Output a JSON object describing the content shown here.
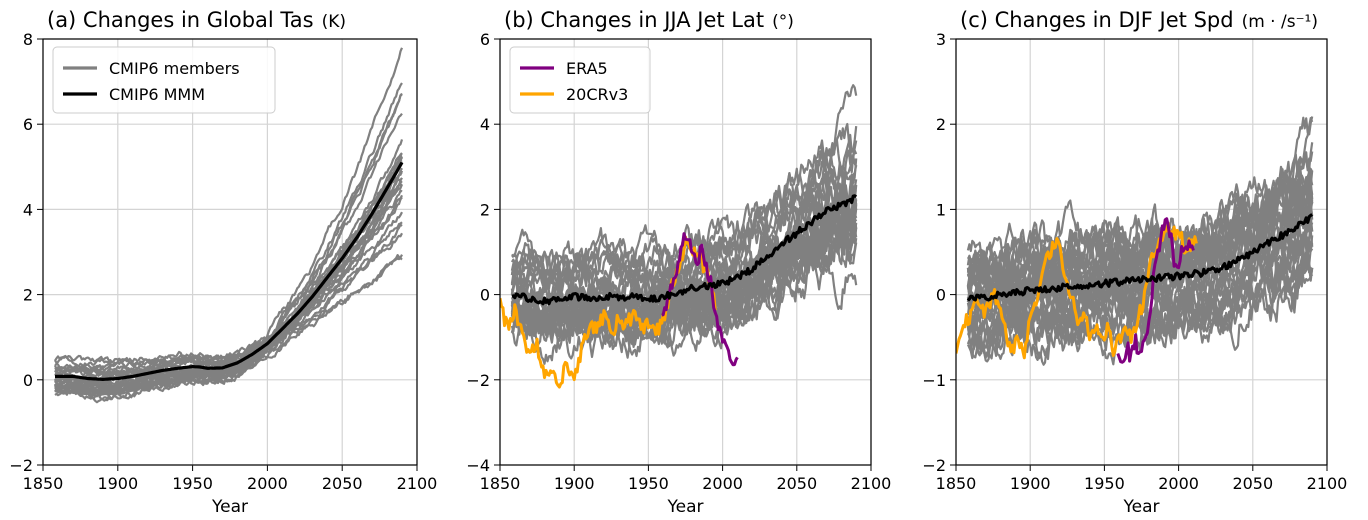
{
  "chart_data": [
    {
      "type": "line",
      "title": "(a) Changes in Global Tas",
      "units": "(K)",
      "xlabel": "Year",
      "ylabel": "",
      "xlim": [
        1850,
        2100
      ],
      "ylim": [
        -2,
        8
      ],
      "xticks": [
        "1850",
        "1900",
        "1950",
        "2000",
        "2050",
        "2100"
      ],
      "yticks": [
        "−2",
        "0",
        "2",
        "4",
        "6",
        "8"
      ],
      "grid": true,
      "legend": {
        "placement": "top-left",
        "entries": [
          "CMIP6 members",
          "CMIP6 MMM"
        ]
      },
      "series": [
        {
          "name": "CMIP6 members",
          "color": "#808080",
          "role": "ensemble",
          "count": 30,
          "spread": [
            0.4,
            0.4,
            0.3,
            0.25,
            0.15,
            0.4,
            0.9,
            1.6
          ]
        },
        {
          "name": "CMIP6 MMM",
          "color": "#000000",
          "role": "mean",
          "x": [
            1858,
            1870,
            1880,
            1890,
            1900,
            1910,
            1920,
            1930,
            1940,
            1950,
            1955,
            1960,
            1970,
            1980,
            1990,
            2000,
            2010,
            2020,
            2030,
            2040,
            2050,
            2060,
            2070,
            2080,
            2090
          ],
          "y": [
            0.08,
            0.08,
            0.03,
            0.01,
            0.03,
            0.08,
            0.15,
            0.22,
            0.27,
            0.31,
            0.3,
            0.27,
            0.28,
            0.4,
            0.6,
            0.85,
            1.2,
            1.55,
            1.95,
            2.4,
            2.85,
            3.35,
            3.9,
            4.5,
            5.1
          ]
        }
      ]
    },
    {
      "type": "line",
      "title": "(b) Changes in JJA Jet Lat",
      "units": "(°)",
      "xlabel": "Year",
      "ylabel": "",
      "xlim": [
        1850,
        2100
      ],
      "ylim": [
        -4,
        6
      ],
      "xticks": [
        "1850",
        "1900",
        "1950",
        "2000",
        "2050",
        "2100"
      ],
      "yticks": [
        "−4",
        "−2",
        "0",
        "2",
        "4",
        "6"
      ],
      "grid": true,
      "legend": {
        "placement": "top-left",
        "entries": [
          "ERA5",
          "20CRv3"
        ]
      },
      "series": [
        {
          "name": "CMIP6 members",
          "color": "#808080",
          "role": "ensemble",
          "count": 32,
          "spread": [
            1.2,
            1.3,
            1.3,
            1.3,
            1.3,
            1.4,
            1.5,
            1.9
          ]
        },
        {
          "name": "CMIP6 MMM",
          "color": "#000000",
          "role": "mean",
          "x": [
            1858,
            1870,
            1880,
            1890,
            1900,
            1910,
            1920,
            1930,
            1940,
            1950,
            1960,
            1970,
            1980,
            1990,
            2000,
            2010,
            2020,
            2030,
            2040,
            2050,
            2060,
            2070,
            2080,
            2090
          ],
          "y": [
            0.0,
            -0.1,
            -0.15,
            -0.1,
            -0.05,
            -0.1,
            -0.05,
            -0.05,
            -0.05,
            -0.1,
            -0.05,
            0.05,
            0.15,
            0.2,
            0.25,
            0.4,
            0.6,
            0.9,
            1.2,
            1.45,
            1.7,
            1.95,
            2.1,
            2.3
          ]
        },
        {
          "name": "20CRv3",
          "color": "#ffa500",
          "role": "reanalysis",
          "x": [
            1850,
            1853,
            1856,
            1860,
            1865,
            1870,
            1875,
            1880,
            1885,
            1890,
            1895,
            1900,
            1905,
            1910,
            1915,
            1920,
            1925,
            1930,
            1935,
            1940,
            1945,
            1950,
            1955,
            1960,
            1965,
            1970,
            1975,
            1980,
            1985,
            1990,
            1995
          ],
          "y": [
            -0.1,
            -0.6,
            -0.8,
            -0.4,
            -0.9,
            -1.4,
            -1.2,
            -1.8,
            -1.7,
            -2.1,
            -1.6,
            -1.9,
            -1.3,
            -0.7,
            -0.8,
            -0.5,
            -0.9,
            -0.6,
            -0.7,
            -0.5,
            -0.8,
            -0.7,
            -0.9,
            -0.6,
            0.1,
            0.6,
            1.2,
            1.0,
            0.9,
            0.4,
            -0.2
          ]
        },
        {
          "name": "ERA5",
          "color": "#800080",
          "role": "reanalysis",
          "x": [
            1959,
            1962,
            1965,
            1968,
            1971,
            1974,
            1977,
            1980,
            1983,
            1986,
            1989,
            1992,
            1995,
            1998,
            2001,
            2004,
            2007,
            2010
          ],
          "y": [
            -0.5,
            -0.2,
            0.2,
            0.5,
            0.9,
            1.4,
            1.3,
            1.0,
            0.8,
            1.1,
            0.6,
            0.3,
            -0.5,
            -0.9,
            -1.2,
            -1.3,
            -1.75,
            -1.6
          ]
        }
      ]
    },
    {
      "type": "line",
      "title": "(c) Changes in DJF Jet Spd",
      "units": "(m · /s⁻¹)",
      "xlabel": "Year",
      "ylabel": "",
      "xlim": [
        1850,
        2100
      ],
      "ylim": [
        -2,
        3
      ],
      "xticks": [
        "1850",
        "1900",
        "1950",
        "2000",
        "2050",
        "2100"
      ],
      "yticks": [
        "−2",
        "−1",
        "0",
        "1",
        "2",
        "3"
      ],
      "grid": true,
      "series": [
        {
          "name": "CMIP6 members",
          "color": "#808080",
          "role": "ensemble",
          "count": 32,
          "spread": [
            0.7,
            0.75,
            0.75,
            0.75,
            0.75,
            0.75,
            0.8,
            0.95
          ]
        },
        {
          "name": "CMIP6 MMM",
          "color": "#000000",
          "role": "mean",
          "x": [
            1858,
            1870,
            1880,
            1890,
            1900,
            1910,
            1920,
            1930,
            1940,
            1950,
            1960,
            1970,
            1980,
            1990,
            2000,
            2010,
            2020,
            2030,
            2040,
            2050,
            2060,
            2070,
            2080,
            2090
          ],
          "y": [
            -0.05,
            -0.03,
            0.0,
            0.02,
            0.05,
            0.07,
            0.08,
            0.1,
            0.12,
            0.13,
            0.15,
            0.17,
            0.18,
            0.2,
            0.22,
            0.24,
            0.27,
            0.32,
            0.4,
            0.5,
            0.6,
            0.7,
            0.8,
            0.92
          ]
        },
        {
          "name": "20CRv3",
          "color": "#ffa500",
          "role": "reanalysis",
          "x": [
            1850,
            1853,
            1856,
            1860,
            1864,
            1868,
            1872,
            1876,
            1880,
            1884,
            1888,
            1892,
            1896,
            1900,
            1904,
            1908,
            1912,
            1916,
            1920,
            1924,
            1928,
            1932,
            1936,
            1940,
            1944,
            1948,
            1952,
            1956,
            1960,
            1964,
            1968,
            1972,
            1976,
            1980,
            1984,
            1988,
            1992,
            1996,
            2000,
            2004,
            2008,
            2012
          ],
          "y": [
            -0.7,
            -0.5,
            -0.3,
            -0.25,
            -0.1,
            -0.2,
            -0.15,
            0.0,
            -0.2,
            -0.5,
            -0.65,
            -0.5,
            -0.7,
            -0.3,
            -0.1,
            0.3,
            0.45,
            0.6,
            0.55,
            0.1,
            0.0,
            -0.3,
            -0.2,
            -0.5,
            -0.35,
            -0.55,
            -0.4,
            -0.65,
            -0.55,
            -0.4,
            -0.5,
            -0.3,
            -0.1,
            0.3,
            0.5,
            0.6,
            0.8,
            0.7,
            0.75,
            0.55,
            0.6,
            0.6
          ]
        },
        {
          "name": "ERA5",
          "color": "#800080",
          "role": "reanalysis",
          "x": [
            1959,
            1962,
            1965,
            1968,
            1971,
            1974,
            1977,
            1980,
            1983,
            1986,
            1989,
            1992,
            1995,
            1998,
            2001,
            2004,
            2007,
            2010
          ],
          "y": [
            -0.7,
            -0.8,
            -0.6,
            -0.75,
            -0.55,
            -0.7,
            -0.5,
            -0.35,
            0.2,
            0.5,
            0.8,
            0.85,
            0.65,
            0.3,
            0.45,
            0.55,
            0.6,
            0.6
          ]
        }
      ]
    }
  ]
}
